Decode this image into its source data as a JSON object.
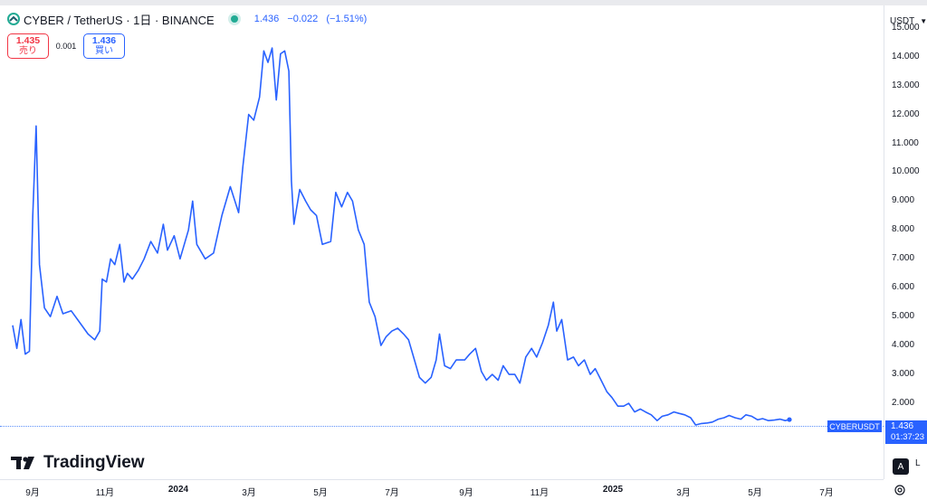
{
  "header": {
    "symbol_title": "CYBER / TetherUS · 1日 · BINANCE",
    "quote": {
      "last": "1.436",
      "change": "−0.022",
      "change_pct": "(−1.51%)"
    },
    "status_color": "#22ab94"
  },
  "trade": {
    "sell_price": "1.435",
    "sell_label": "売り",
    "spread": "0.001",
    "buy_price": "1.436",
    "buy_label": "買い"
  },
  "price_scale": {
    "currency": "USDT",
    "last_price_label": "1.436",
    "countdown": "01:37:23",
    "symbol_label": "CYBERUSDT"
  },
  "buttons": {
    "auto_label": "A",
    "log_label": "L"
  },
  "branding": {
    "logo_text": "TradingView"
  },
  "icons": {
    "symbol": "cyber-logo-icon",
    "settings": "gear-icon",
    "currency_dropdown": "chevron-down-icon"
  },
  "colors": {
    "line": "#2962ff",
    "sell": "#f23645",
    "buy": "#2962ff"
  },
  "chart_data": {
    "type": "line",
    "y_ticks": [
      "2.000",
      "3.000",
      "4.000",
      "5.000",
      "6.000",
      "7.000",
      "8.000",
      "9.000",
      "10.000",
      "11.000",
      "12.000",
      "13.000",
      "14.000",
      "15.000"
    ],
    "x_ticks": [
      {
        "label": "9月",
        "bold": false
      },
      {
        "label": "11月",
        "bold": false
      },
      {
        "label": "2024",
        "bold": true
      },
      {
        "label": "3月",
        "bold": false
      },
      {
        "label": "5月",
        "bold": false
      },
      {
        "label": "7月",
        "bold": false
      },
      {
        "label": "9月",
        "bold": false
      },
      {
        "label": "11月",
        "bold": false
      },
      {
        "label": "2025",
        "bold": true
      },
      {
        "label": "3月",
        "bold": false
      },
      {
        "label": "5月",
        "bold": false
      },
      {
        "label": "7月",
        "bold": false
      }
    ],
    "ylim": [
      1.4,
      15.0
    ],
    "series": [
      {
        "points": [
          [
            0.0,
            4.7
          ],
          [
            0.5,
            3.9
          ],
          [
            1.0,
            4.9
          ],
          [
            1.5,
            3.7
          ],
          [
            2.0,
            3.8
          ],
          [
            2.4,
            8.5
          ],
          [
            2.8,
            11.6
          ],
          [
            3.2,
            6.8
          ],
          [
            3.8,
            5.3
          ],
          [
            4.5,
            5.0
          ],
          [
            5.3,
            5.7
          ],
          [
            6.0,
            5.1
          ],
          [
            7.0,
            5.2
          ],
          [
            8.0,
            4.8
          ],
          [
            9.0,
            4.4
          ],
          [
            9.8,
            4.2
          ],
          [
            10.4,
            4.5
          ],
          [
            10.7,
            6.3
          ],
          [
            11.2,
            6.2
          ],
          [
            11.7,
            7.0
          ],
          [
            12.2,
            6.8
          ],
          [
            12.8,
            7.5
          ],
          [
            13.3,
            6.2
          ],
          [
            13.7,
            6.5
          ],
          [
            14.3,
            6.3
          ],
          [
            15.0,
            6.6
          ],
          [
            15.7,
            7.0
          ],
          [
            16.5,
            7.6
          ],
          [
            17.3,
            7.2
          ],
          [
            18.0,
            8.2
          ],
          [
            18.5,
            7.3
          ],
          [
            19.3,
            7.8
          ],
          [
            20.0,
            7.0
          ],
          [
            21.0,
            8.0
          ],
          [
            21.5,
            9.0
          ],
          [
            22.0,
            7.5
          ],
          [
            23.0,
            7.0
          ],
          [
            24.0,
            7.2
          ],
          [
            25.0,
            8.5
          ],
          [
            26.0,
            9.5
          ],
          [
            27.0,
            8.6
          ],
          [
            27.5,
            10.2
          ],
          [
            28.2,
            12.0
          ],
          [
            28.8,
            11.8
          ],
          [
            29.5,
            12.6
          ],
          [
            30.0,
            14.2
          ],
          [
            30.5,
            13.8
          ],
          [
            31.0,
            14.3
          ],
          [
            31.5,
            12.5
          ],
          [
            32.0,
            14.1
          ],
          [
            32.5,
            14.2
          ],
          [
            33.0,
            13.5
          ],
          [
            33.3,
            9.7
          ],
          [
            33.6,
            8.2
          ],
          [
            34.3,
            9.4
          ],
          [
            35.0,
            9.0
          ],
          [
            35.6,
            8.7
          ],
          [
            36.3,
            8.5
          ],
          [
            37.0,
            7.5
          ],
          [
            38.0,
            7.6
          ],
          [
            38.6,
            9.3
          ],
          [
            39.3,
            8.8
          ],
          [
            40.0,
            9.3
          ],
          [
            40.6,
            9.0
          ],
          [
            41.3,
            8.0
          ],
          [
            42.0,
            7.5
          ],
          [
            42.6,
            5.5
          ],
          [
            43.3,
            5.0
          ],
          [
            44.0,
            4.0
          ],
          [
            44.6,
            4.3
          ],
          [
            45.3,
            4.5
          ],
          [
            46.0,
            4.6
          ],
          [
            46.7,
            4.4
          ],
          [
            47.3,
            4.2
          ],
          [
            48.0,
            3.5
          ],
          [
            48.6,
            2.9
          ],
          [
            49.3,
            2.7
          ],
          [
            50.0,
            2.9
          ],
          [
            50.6,
            3.5
          ],
          [
            51.0,
            4.4
          ],
          [
            51.6,
            3.3
          ],
          [
            52.3,
            3.2
          ],
          [
            53.0,
            3.5
          ],
          [
            54.0,
            3.5
          ],
          [
            54.6,
            3.7
          ],
          [
            55.3,
            3.9
          ],
          [
            56.0,
            3.1
          ],
          [
            56.6,
            2.8
          ],
          [
            57.3,
            3.0
          ],
          [
            58.0,
            2.8
          ],
          [
            58.6,
            3.3
          ],
          [
            59.3,
            3.0
          ],
          [
            60.0,
            3.0
          ],
          [
            60.6,
            2.7
          ],
          [
            61.3,
            3.6
          ],
          [
            62.0,
            3.9
          ],
          [
            62.6,
            3.6
          ],
          [
            63.3,
            4.1
          ],
          [
            64.0,
            4.7
          ],
          [
            64.6,
            5.5
          ],
          [
            65.0,
            4.5
          ],
          [
            65.6,
            4.9
          ],
          [
            66.3,
            3.5
          ],
          [
            67.0,
            3.6
          ],
          [
            67.6,
            3.3
          ],
          [
            68.3,
            3.5
          ],
          [
            69.0,
            3.0
          ],
          [
            69.6,
            3.2
          ],
          [
            70.3,
            2.8
          ],
          [
            71.0,
            2.4
          ],
          [
            71.6,
            2.2
          ],
          [
            72.3,
            1.9
          ],
          [
            73.0,
            1.9
          ],
          [
            73.6,
            2.0
          ],
          [
            74.3,
            1.7
          ],
          [
            75.0,
            1.8
          ],
          [
            75.6,
            1.7
          ],
          [
            76.3,
            1.6
          ],
          [
            77.0,
            1.4
          ],
          [
            77.6,
            1.55
          ],
          [
            78.3,
            1.6
          ],
          [
            79.0,
            1.7
          ],
          [
            79.6,
            1.65
          ],
          [
            80.3,
            1.6
          ],
          [
            81.0,
            1.5
          ],
          [
            81.6,
            1.25
          ],
          [
            82.3,
            1.3
          ],
          [
            83.0,
            1.32
          ],
          [
            83.6,
            1.35
          ],
          [
            84.3,
            1.45
          ],
          [
            85.0,
            1.5
          ],
          [
            85.6,
            1.58
          ],
          [
            86.3,
            1.5
          ],
          [
            87.0,
            1.45
          ],
          [
            87.6,
            1.6
          ],
          [
            88.3,
            1.55
          ],
          [
            89.0,
            1.43
          ],
          [
            89.6,
            1.47
          ],
          [
            90.3,
            1.4
          ],
          [
            91.0,
            1.42
          ],
          [
            91.7,
            1.45
          ],
          [
            92.3,
            1.4
          ],
          [
            92.8,
            1.436
          ]
        ]
      }
    ]
  }
}
